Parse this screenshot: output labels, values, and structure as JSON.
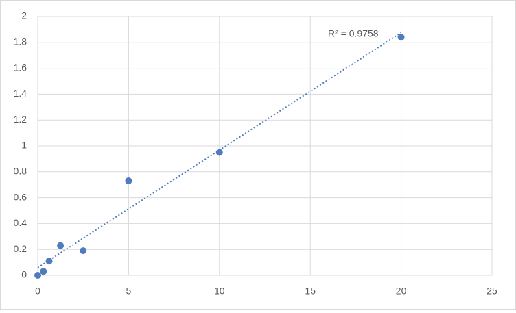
{
  "chart_data": {
    "type": "scatter",
    "x": [
      0,
      0.3125,
      0.625,
      1.25,
      2.5,
      5,
      10,
      20
    ],
    "series": [
      {
        "color": "#4f7cc0",
        "values": [
          0,
          0.03,
          0.11,
          0.23,
          0.19,
          0.73,
          0.95,
          1.84
        ]
      }
    ],
    "xlim": [
      0,
      25
    ],
    "xticks": [
      0,
      5,
      10,
      15,
      20,
      25
    ],
    "ylim": [
      0,
      2
    ],
    "yticks": [
      0,
      0.2,
      0.4,
      0.6,
      0.8,
      1,
      1.2,
      1.4,
      1.6,
      1.8,
      2
    ],
    "grid": true,
    "trendline": "linear",
    "annotation": "R² = 0.9758"
  }
}
